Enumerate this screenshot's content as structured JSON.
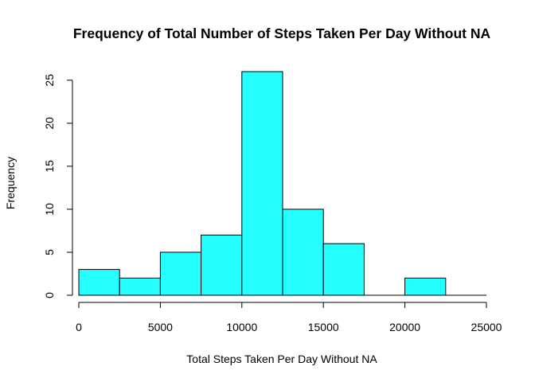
{
  "chart_data": {
    "type": "bar",
    "title": "Frequency of Total Number of Steps Taken Per Day Without NA",
    "xlabel": "Total Steps Taken Per Day Without NA",
    "ylabel": "Frequency",
    "bins": [
      {
        "from": 0,
        "to": 2500,
        "count": 3
      },
      {
        "from": 2500,
        "to": 5000,
        "count": 2
      },
      {
        "from": 5000,
        "to": 7500,
        "count": 5
      },
      {
        "from": 7500,
        "to": 10000,
        "count": 7
      },
      {
        "from": 10000,
        "to": 12500,
        "count": 26
      },
      {
        "from": 12500,
        "to": 15000,
        "count": 10
      },
      {
        "from": 15000,
        "to": 17500,
        "count": 6
      },
      {
        "from": 17500,
        "to": 20000,
        "count": 0
      },
      {
        "from": 20000,
        "to": 22500,
        "count": 2
      },
      {
        "from": 22500,
        "to": 25000,
        "count": 0
      }
    ],
    "xlim": [
      0,
      25000
    ],
    "ylim": [
      0,
      26
    ],
    "x_ticks": [
      "0",
      "5000",
      "10000",
      "15000",
      "20000",
      "25000"
    ],
    "y_ticks": [
      "0",
      "5",
      "10",
      "15",
      "20",
      "25"
    ],
    "bar_color": "#26ffff",
    "border_color": "#000000",
    "grid": false
  }
}
